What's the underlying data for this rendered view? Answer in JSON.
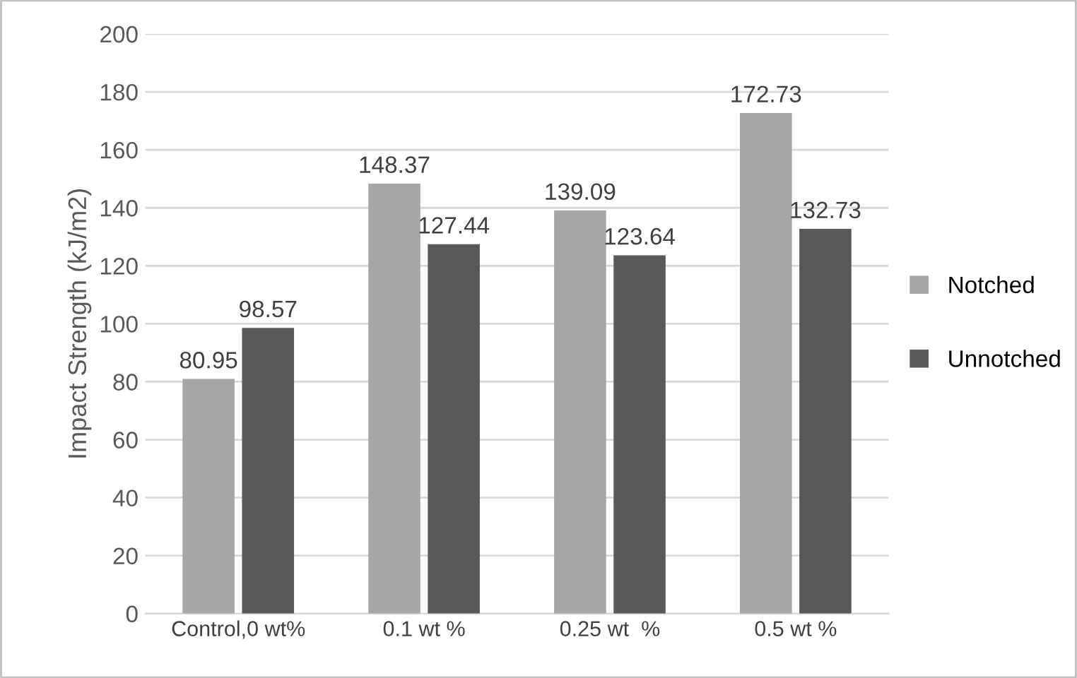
{
  "chart_data": {
    "type": "bar",
    "ylabel": "Impact Strength (kJ/m2)",
    "categories": [
      "Control,0 wt%",
      "0.1 wt %",
      "0.25 wt  %",
      "0.5 wt %"
    ],
    "series": [
      {
        "name": "Notched",
        "color": "#a6a6a6",
        "values": [
          80.95,
          148.37,
          139.09,
          172.73
        ]
      },
      {
        "name": "Unnotched",
        "color": "#595959",
        "values": [
          98.57,
          127.44,
          123.64,
          132.73
        ]
      }
    ],
    "ylim": [
      0,
      200
    ],
    "yticks": [
      0,
      20,
      40,
      60,
      80,
      100,
      120,
      140,
      160,
      180,
      200
    ],
    "grid": "y",
    "legend": "right",
    "data_labels": true
  }
}
